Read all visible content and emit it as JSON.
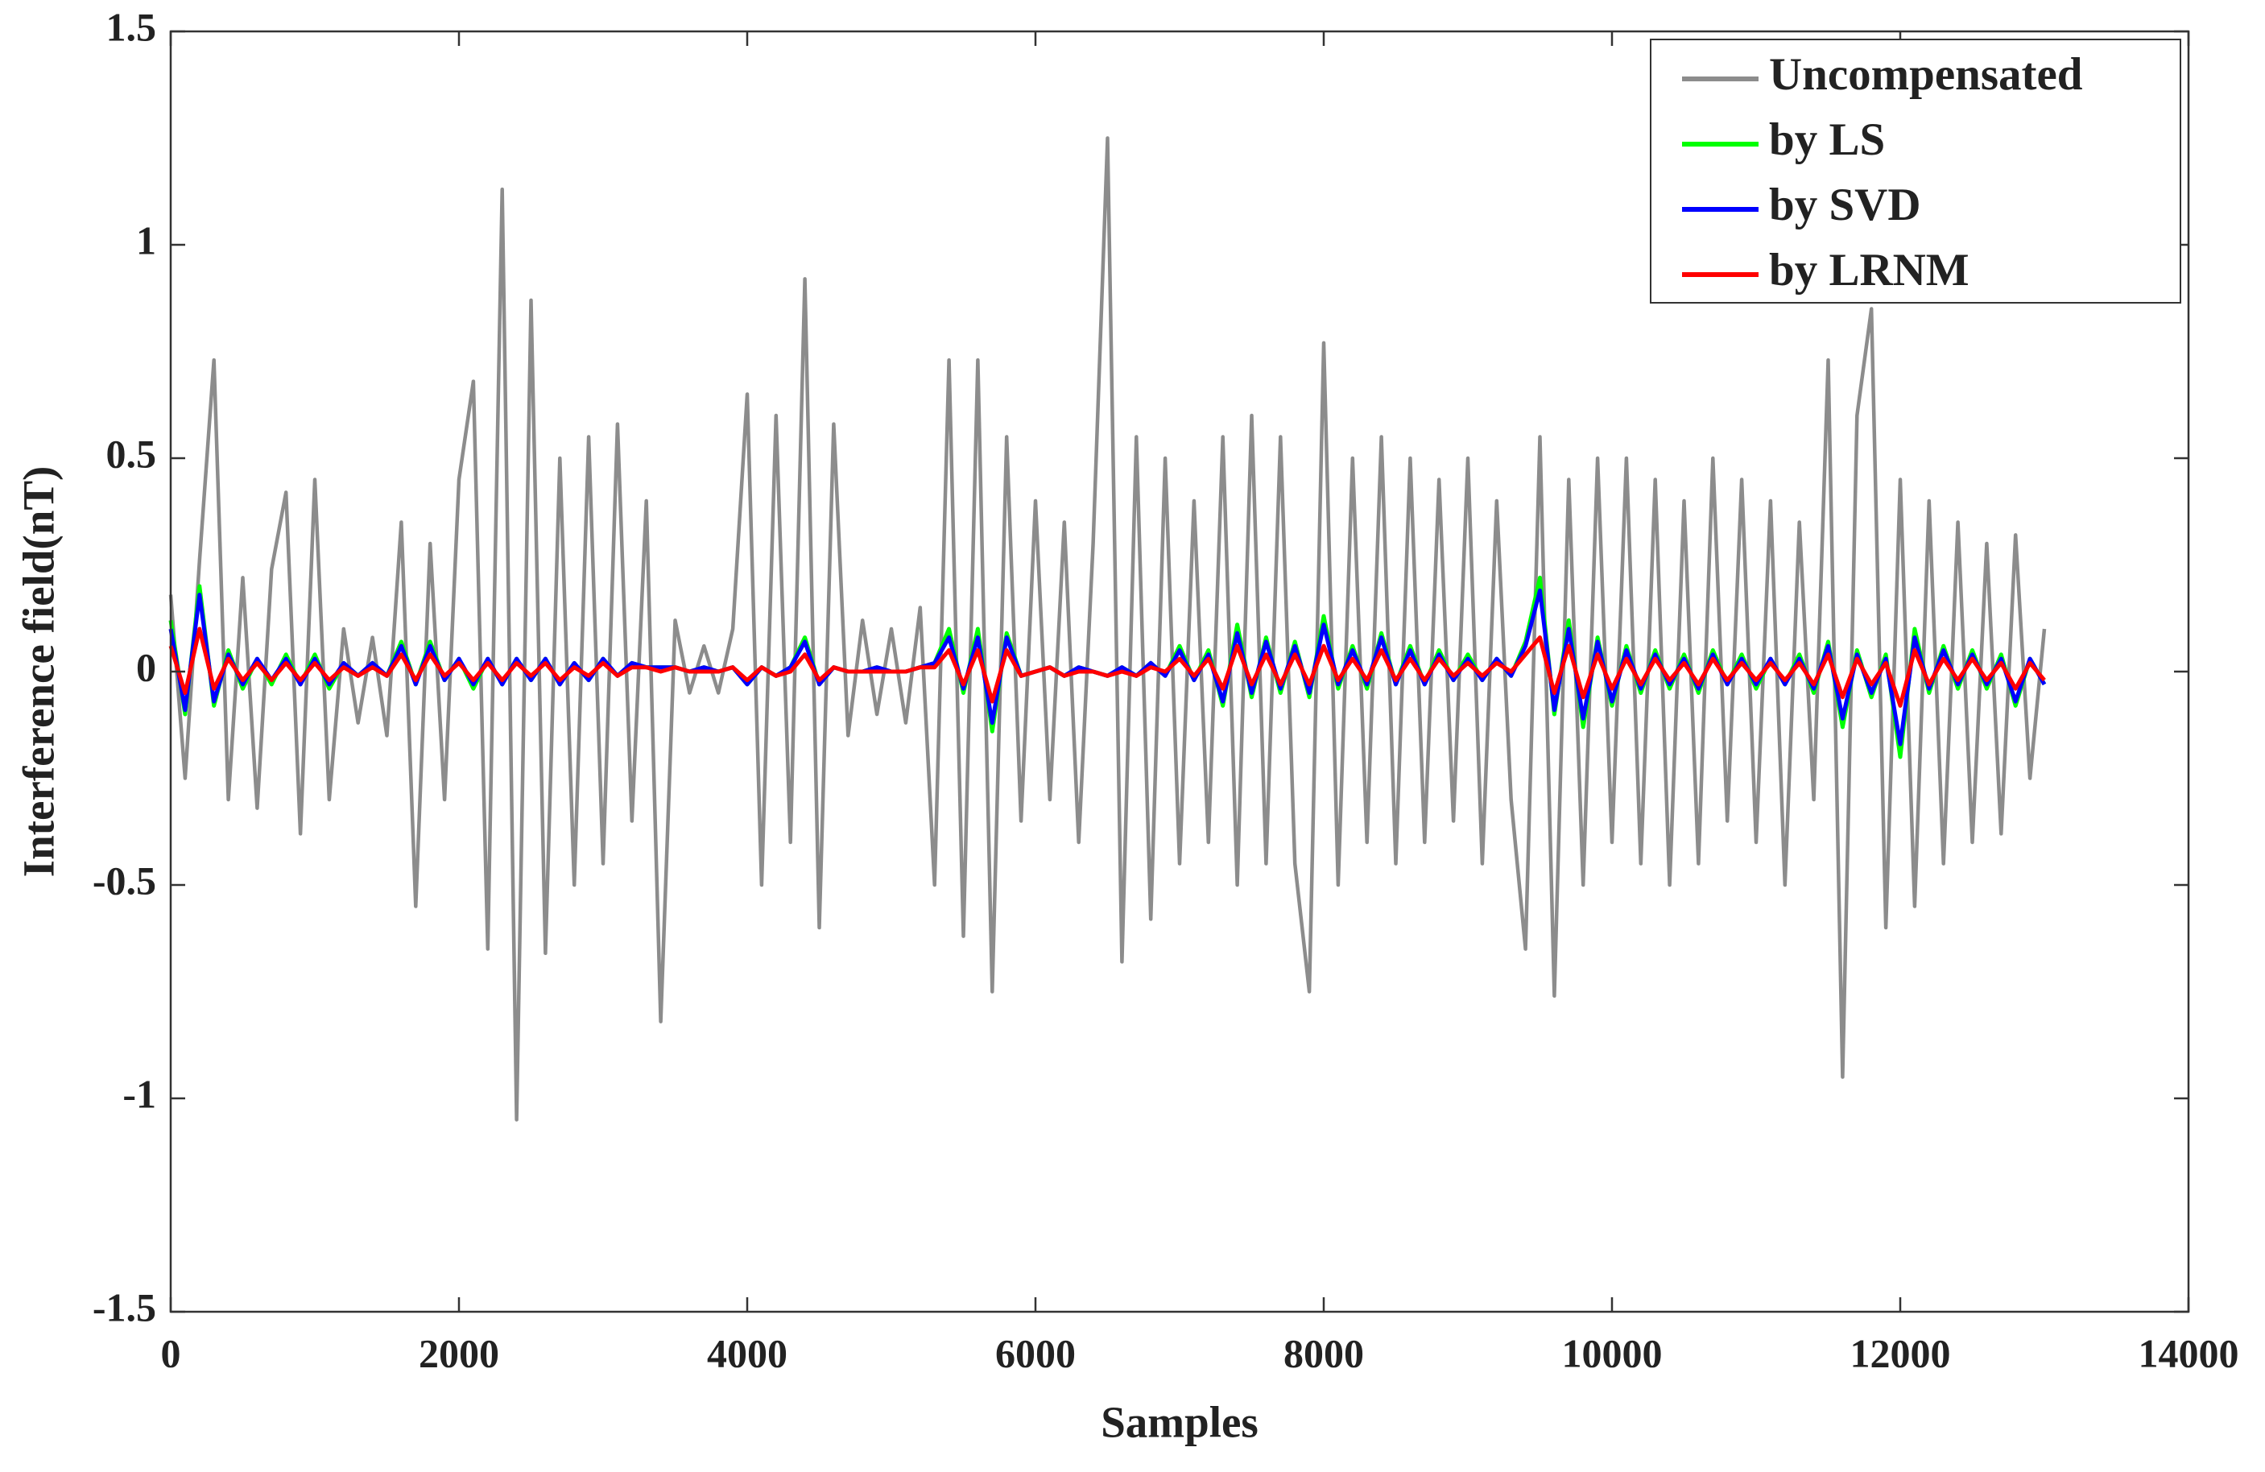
{
  "chart_data": {
    "type": "line",
    "xlabel": "Samples",
    "ylabel": "Interference field(nT)",
    "xlim": [
      0,
      14000
    ],
    "ylim": [
      -1.5,
      1.5
    ],
    "xticks": [
      0,
      2000,
      4000,
      6000,
      8000,
      10000,
      12000,
      14000
    ],
    "yticks": [
      -1.5,
      -1,
      -0.5,
      0,
      0.5,
      1,
      1.5
    ],
    "grid": false,
    "legend": "upper right",
    "x": [
      0,
      100,
      200,
      300,
      400,
      500,
      600,
      700,
      800,
      900,
      1000,
      1100,
      1200,
      1300,
      1400,
      1500,
      1600,
      1700,
      1800,
      1900,
      2000,
      2100,
      2200,
      2300,
      2400,
      2500,
      2600,
      2700,
      2800,
      2900,
      3000,
      3100,
      3200,
      3300,
      3400,
      3500,
      3600,
      3700,
      3800,
      3900,
      4000,
      4100,
      4200,
      4300,
      4400,
      4500,
      4600,
      4700,
      4800,
      4900,
      5000,
      5100,
      5200,
      5300,
      5400,
      5500,
      5600,
      5700,
      5800,
      5900,
      6000,
      6100,
      6200,
      6300,
      6400,
      6500,
      6600,
      6700,
      6800,
      6900,
      7000,
      7100,
      7200,
      7300,
      7400,
      7500,
      7600,
      7700,
      7800,
      7900,
      8000,
      8100,
      8200,
      8300,
      8400,
      8500,
      8600,
      8700,
      8800,
      8900,
      9000,
      9100,
      9200,
      9300,
      9400,
      9500,
      9600,
      9700,
      9800,
      9900,
      10000,
      10100,
      10200,
      10300,
      10400,
      10500,
      10600,
      10700,
      10800,
      10900,
      11000,
      11100,
      11200,
      11300,
      11400,
      11500,
      11600,
      11700,
      11800,
      11900,
      12000,
      12100,
      12200,
      12300,
      12400,
      12500,
      12600,
      12700,
      12800,
      12900,
      13000
    ],
    "series": [
      {
        "name": "Uncompensated",
        "color": "#8c8c8c",
        "values": [
          0.18,
          -0.25,
          0.26,
          0.73,
          -0.3,
          0.22,
          -0.32,
          0.24,
          0.42,
          -0.38,
          0.45,
          -0.3,
          0.1,
          -0.12,
          0.08,
          -0.15,
          0.35,
          -0.55,
          0.3,
          -0.3,
          0.45,
          0.68,
          -0.65,
          1.13,
          -1.05,
          0.87,
          -0.66,
          0.5,
          -0.5,
          0.55,
          -0.45,
          0.58,
          -0.35,
          0.4,
          -0.82,
          0.12,
          -0.05,
          0.06,
          -0.05,
          0.1,
          0.65,
          -0.5,
          0.6,
          -0.4,
          0.92,
          -0.6,
          0.58,
          -0.15,
          0.12,
          -0.1,
          0.1,
          -0.12,
          0.15,
          -0.5,
          0.73,
          -0.62,
          0.73,
          -0.75,
          0.55,
          -0.35,
          0.4,
          -0.3,
          0.35,
          -0.4,
          0.3,
          1.25,
          -0.68,
          0.55,
          -0.58,
          0.5,
          -0.45,
          0.4,
          -0.4,
          0.55,
          -0.5,
          0.6,
          -0.45,
          0.55,
          -0.45,
          -0.75,
          0.77,
          -0.5,
          0.5,
          -0.4,
          0.55,
          -0.45,
          0.5,
          -0.4,
          0.45,
          -0.35,
          0.5,
          -0.45,
          0.4,
          -0.3,
          -0.65,
          0.55,
          -0.76,
          0.45,
          -0.5,
          0.5,
          -0.4,
          0.5,
          -0.45,
          0.45,
          -0.5,
          0.4,
          -0.45,
          0.5,
          -0.35,
          0.45,
          -0.4,
          0.4,
          -0.5,
          0.35,
          -0.3,
          0.73,
          -0.95,
          0.6,
          0.85,
          -0.6,
          0.45,
          -0.55,
          0.4,
          -0.45,
          0.35,
          -0.4,
          0.3,
          -0.38,
          0.32,
          -0.25,
          0.1
        ]
      },
      {
        "name": "by LS",
        "color": "#00ff00",
        "values": [
          0.12,
          -0.1,
          0.2,
          -0.08,
          0.05,
          -0.04,
          0.03,
          -0.03,
          0.04,
          -0.03,
          0.04,
          -0.04,
          0.02,
          -0.01,
          0.02,
          -0.01,
          0.07,
          -0.03,
          0.07,
          -0.02,
          0.03,
          -0.04,
          0.03,
          -0.03,
          0.03,
          -0.02,
          0.03,
          -0.03,
          0.02,
          -0.02,
          0.03,
          -0.01,
          0.02,
          0.01,
          0.01,
          0.01,
          0,
          0.01,
          0,
          0.01,
          -0.03,
          0.01,
          -0.01,
          0.01,
          0.08,
          -0.03,
          0.01,
          0,
          0,
          0.01,
          0,
          0,
          0.01,
          0.02,
          0.1,
          -0.05,
          0.1,
          -0.14,
          0.09,
          -0.01,
          0,
          0.01,
          -0.01,
          0.01,
          0,
          -0.01,
          0.01,
          -0.01,
          0.02,
          -0.01,
          0.06,
          -0.02,
          0.05,
          -0.08,
          0.11,
          -0.06,
          0.08,
          -0.05,
          0.07,
          -0.06,
          0.13,
          -0.04,
          0.06,
          -0.04,
          0.09,
          -0.03,
          0.06,
          -0.03,
          0.05,
          -0.02,
          0.04,
          -0.02,
          0.03,
          -0.01,
          0.07,
          0.22,
          -0.1,
          0.12,
          -0.13,
          0.08,
          -0.08,
          0.06,
          -0.05,
          0.05,
          -0.04,
          0.04,
          -0.05,
          0.05,
          -0.03,
          0.04,
          -0.04,
          0.03,
          -0.03,
          0.04,
          -0.05,
          0.07,
          -0.13,
          0.05,
          -0.06,
          0.04,
          -0.2,
          0.1,
          -0.05,
          0.06,
          -0.04,
          0.05,
          -0.04,
          0.04,
          -0.08,
          0.03,
          -0.03
        ]
      },
      {
        "name": "by SVD",
        "color": "#0000ff",
        "values": [
          0.1,
          -0.09,
          0.18,
          -0.07,
          0.04,
          -0.03,
          0.03,
          -0.02,
          0.03,
          -0.03,
          0.03,
          -0.03,
          0.02,
          -0.01,
          0.02,
          -0.01,
          0.06,
          -0.03,
          0.06,
          -0.02,
          0.03,
          -0.03,
          0.03,
          -0.03,
          0.03,
          -0.02,
          0.03,
          -0.03,
          0.02,
          -0.02,
          0.03,
          -0.01,
          0.02,
          0.01,
          0.01,
          0.01,
          0,
          0.01,
          0,
          0.01,
          -0.03,
          0.01,
          -0.01,
          0.01,
          0.07,
          -0.03,
          0.01,
          0,
          0,
          0.01,
          0,
          0,
          0.01,
          0.02,
          0.08,
          -0.04,
          0.08,
          -0.12,
          0.08,
          -0.01,
          0,
          0.01,
          -0.01,
          0.01,
          0,
          -0.01,
          0.01,
          -0.01,
          0.02,
          -0.01,
          0.05,
          -0.02,
          0.04,
          -0.07,
          0.09,
          -0.05,
          0.07,
          -0.04,
          0.06,
          -0.05,
          0.11,
          -0.03,
          0.05,
          -0.03,
          0.08,
          -0.03,
          0.05,
          -0.03,
          0.04,
          -0.02,
          0.03,
          -0.02,
          0.03,
          -0.01,
          0.06,
          0.19,
          -0.09,
          0.1,
          -0.11,
          0.07,
          -0.07,
          0.05,
          -0.04,
          0.04,
          -0.03,
          0.03,
          -0.04,
          0.04,
          -0.03,
          0.03,
          -0.03,
          0.03,
          -0.03,
          0.03,
          -0.04,
          0.06,
          -0.11,
          0.04,
          -0.05,
          0.03,
          -0.17,
          0.08,
          -0.04,
          0.05,
          -0.03,
          0.04,
          -0.03,
          0.03,
          -0.07,
          0.03,
          -0.03
        ]
      },
      {
        "name": "by LRNM",
        "color": "#ff0000",
        "values": [
          0.06,
          -0.05,
          0.1,
          -0.04,
          0.03,
          -0.02,
          0.02,
          -0.02,
          0.02,
          -0.02,
          0.02,
          -0.02,
          0.01,
          -0.01,
          0.01,
          -0.01,
          0.04,
          -0.02,
          0.04,
          -0.01,
          0.02,
          -0.02,
          0.02,
          -0.02,
          0.02,
          -0.01,
          0.02,
          -0.02,
          0.01,
          -0.01,
          0.02,
          -0.01,
          0.01,
          0.01,
          0,
          0.01,
          0,
          0,
          0,
          0.01,
          -0.02,
          0.01,
          -0.01,
          0,
          0.04,
          -0.02,
          0.01,
          0,
          0,
          0,
          0,
          0,
          0.01,
          0.01,
          0.05,
          -0.03,
          0.05,
          -0.07,
          0.05,
          -0.01,
          0,
          0.01,
          -0.01,
          0,
          0,
          -0.01,
          0,
          -0.01,
          0.01,
          0,
          0.03,
          -0.01,
          0.03,
          -0.04,
          0.06,
          -0.03,
          0.04,
          -0.03,
          0.04,
          -0.03,
          0.06,
          -0.02,
          0.03,
          -0.02,
          0.05,
          -0.02,
          0.03,
          -0.02,
          0.03,
          -0.01,
          0.02,
          -0.01,
          0.02,
          0,
          0.04,
          0.08,
          -0.05,
          0.06,
          -0.06,
          0.04,
          -0.04,
          0.03,
          -0.03,
          0.03,
          -0.02,
          0.02,
          -0.03,
          0.03,
          -0.02,
          0.02,
          -0.02,
          0.02,
          -0.02,
          0.02,
          -0.03,
          0.04,
          -0.06,
          0.03,
          -0.03,
          0.02,
          -0.08,
          0.05,
          -0.03,
          0.03,
          -0.02,
          0.03,
          -0.02,
          0.02,
          -0.04,
          0.02,
          -0.02
        ]
      }
    ]
  }
}
